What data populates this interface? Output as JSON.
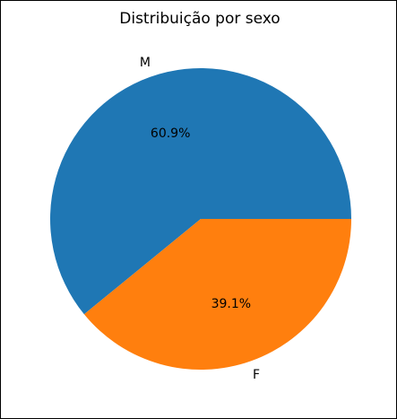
{
  "chart_data": {
    "type": "pie",
    "title": "Distribuição por sexo",
    "labels": [
      "M",
      "F"
    ],
    "values": [
      60.9,
      39.1
    ],
    "value_labels": [
      "60.9%",
      "39.1%"
    ],
    "colors": [
      "#1f77b4",
      "#ff7f0e"
    ],
    "start_angle_deg": 0,
    "direction": "counterclockwise",
    "legend": "none"
  }
}
